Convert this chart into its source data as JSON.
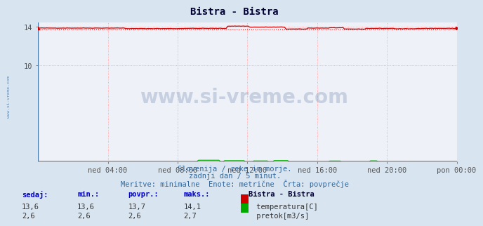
{
  "title": "Bistra - Bistra",
  "bg_color": "#d8e4f0",
  "plot_bg_color": "#eef2f8",
  "grid_color": "#ff9999",
  "grid_color_minor": "#ffcccc",
  "x_tick_labels": [
    "ned 04:00",
    "ned 08:00",
    "ned 12:00",
    "ned 16:00",
    "ned 20:00",
    "pon 00:00"
  ],
  "x_tick_positions": [
    0.1667,
    0.3333,
    0.5,
    0.6667,
    0.8333,
    1.0
  ],
  "y_min": 0,
  "y_max": 14.4,
  "y_ticks": [
    10,
    14
  ],
  "temp_color": "#cc0000",
  "flow_color": "#00aa00",
  "temp_avg": 13.7,
  "temp_min": 13.6,
  "temp_max": 14.1,
  "flow_avg": 2.6,
  "flow_min": 2.6,
  "flow_max": 2.7,
  "subtitle1": "Slovenija / reke in morje.",
  "subtitle2": "zadnji dan / 5 minut.",
  "subtitle3": "Meritve: minimalne  Enote: metrične  Črta: povprečje",
  "legend_title": "Bistra - Bistra",
  "legend_items": [
    "temperatura[C]",
    "pretok[m3/s]"
  ],
  "legend_colors": [
    "#cc0000",
    "#00aa00"
  ],
  "table_headers": [
    "sedaj:",
    "min.:",
    "povpr.:",
    "maks.:"
  ],
  "table_row1": [
    "13,6",
    "13,6",
    "13,7",
    "14,1"
  ],
  "table_row2": [
    "2,6",
    "2,6",
    "2,6",
    "2,7"
  ],
  "watermark": "www.si-vreme.com",
  "watermark_color": "#1a3a7a",
  "left_label": "www.si-vreme.com",
  "n_points": 288,
  "border_color": "#4477aa"
}
